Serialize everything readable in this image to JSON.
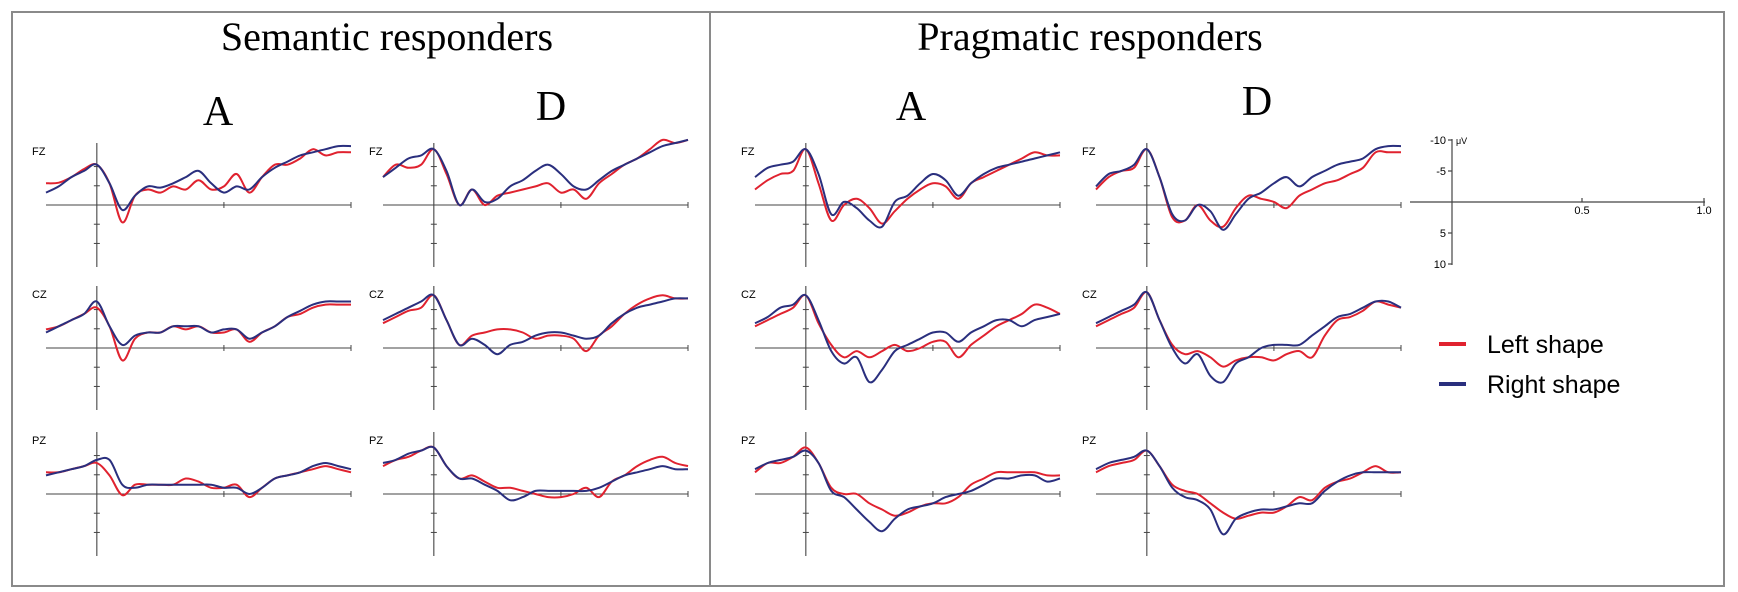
{
  "groups": [
    {
      "id": "semantic",
      "title": "Semantic responders",
      "conditions": [
        "A",
        "D"
      ]
    },
    {
      "id": "pragmatic",
      "title": "Pragmatic responders",
      "conditions": [
        "A",
        "D"
      ]
    }
  ],
  "electrodes": [
    "FZ",
    "CZ",
    "PZ"
  ],
  "scale": {
    "y_ticks": [
      "-10",
      "-5",
      "5",
      "10"
    ],
    "y_unit": "μV",
    "x_ticks": [
      "0.5",
      "1.0"
    ]
  },
  "legend": [
    {
      "label": "Left shape",
      "color": "#e0222f"
    },
    {
      "label": "Right shape",
      "color": "#2a2f7e"
    }
  ],
  "colors": {
    "left": "#e0222f",
    "right": "#2a2f7e",
    "axis": "#444444",
    "border": "#8a8a8a"
  },
  "chart_data": {
    "type": "line",
    "description_axes": "ERP waveforms; negative up",
    "xlabel": "",
    "ylabel": "",
    "xlim": [
      -0.2,
      1.0
    ],
    "ylim": [
      -10,
      10
    ],
    "y_inverted": true,
    "x": [
      -0.2,
      -0.15,
      -0.1,
      -0.05,
      0.0,
      0.05,
      0.1,
      0.15,
      0.2,
      0.25,
      0.3,
      0.35,
      0.4,
      0.45,
      0.5,
      0.55,
      0.6,
      0.65,
      0.7,
      0.75,
      0.8,
      0.85,
      0.9,
      0.95,
      1.0
    ],
    "panels": [
      {
        "group": "Semantic responders",
        "condition": "A",
        "electrode": "FZ",
        "series": [
          {
            "name": "Left shape",
            "values": [
              -3.5,
              -3.6,
              -4.5,
              -5.8,
              -6.5,
              -3.5,
              2.8,
              -1.5,
              -2.5,
              -2.0,
              -3.0,
              -2.5,
              -4.0,
              -2.5,
              -3.0,
              -5.0,
              -2.0,
              -4.5,
              -6.5,
              -6.5,
              -7.5,
              -9.0,
              -8.0,
              -8.5,
              -8.5
            ]
          },
          {
            "name": "Right shape",
            "values": [
              -2.0,
              -3.0,
              -4.5,
              -5.5,
              -6.5,
              -3.5,
              0.8,
              -1.5,
              -3.0,
              -2.8,
              -3.5,
              -4.5,
              -5.5,
              -3.5,
              -2.0,
              -3.0,
              -2.5,
              -4.5,
              -6.0,
              -7.0,
              -8.0,
              -8.5,
              -9.0,
              -9.5,
              -9.5
            ]
          }
        ]
      },
      {
        "group": "Semantic responders",
        "condition": "A",
        "electrode": "CZ",
        "series": [
          {
            "name": "Left shape",
            "values": [
              -3.0,
              -3.5,
              -4.5,
              -5.5,
              -6.5,
              -3.5,
              2.0,
              -1.5,
              -2.5,
              -2.5,
              -3.5,
              -3.0,
              -3.5,
              -2.5,
              -2.5,
              -3.0,
              -1.0,
              -2.5,
              -3.5,
              -5.0,
              -5.5,
              -6.5,
              -7.0,
              -7.0,
              -7.0
            ]
          },
          {
            "name": "Right shape",
            "values": [
              -2.5,
              -3.5,
              -4.5,
              -5.5,
              -7.5,
              -3.5,
              -0.5,
              -2.0,
              -2.5,
              -2.5,
              -3.5,
              -3.5,
              -3.5,
              -2.5,
              -3.0,
              -3.0,
              -1.5,
              -2.5,
              -3.5,
              -5.0,
              -6.0,
              -7.0,
              -7.5,
              -7.5,
              -7.5
            ]
          }
        ]
      },
      {
        "group": "Semantic responders",
        "condition": "A",
        "electrode": "PZ",
        "series": [
          {
            "name": "Left shape",
            "values": [
              -3.5,
              -3.5,
              -4.0,
              -4.5,
              -5.0,
              -3.0,
              0.2,
              -1.5,
              -1.5,
              -1.5,
              -1.5,
              -2.5,
              -2.0,
              -1.0,
              -1.0,
              -1.5,
              0.5,
              -1.0,
              -2.5,
              -3.0,
              -3.5,
              -4.0,
              -4.5,
              -4.0,
              -3.5
            ]
          },
          {
            "name": "Right shape",
            "values": [
              -3.0,
              -3.5,
              -4.0,
              -4.5,
              -5.5,
              -5.5,
              -1.5,
              -1.0,
              -1.5,
              -1.5,
              -1.5,
              -1.5,
              -1.5,
              -1.5,
              -1.0,
              -1.0,
              0.0,
              -1.0,
              -2.5,
              -3.0,
              -3.5,
              -4.5,
              -5.0,
              -4.5,
              -4.0
            ]
          }
        ]
      },
      {
        "group": "Semantic responders",
        "condition": "D",
        "electrode": "FZ",
        "series": [
          {
            "name": "Left shape",
            "values": [
              -4.5,
              -6.5,
              -6.0,
              -6.5,
              -9.0,
              -5.0,
              0.0,
              -2.5,
              0.0,
              -1.5,
              -2.0,
              -2.5,
              -3.0,
              -3.5,
              -2.0,
              -2.5,
              -1.0,
              -3.5,
              -5.0,
              -6.5,
              -7.5,
              -9.0,
              -10.5,
              -10.0,
              -10.5
            ]
          },
          {
            "name": "Right shape",
            "values": [
              -4.5,
              -6.0,
              -7.5,
              -8.0,
              -9.0,
              -5.5,
              0.0,
              -2.5,
              -0.5,
              -1.0,
              -3.0,
              -4.0,
              -5.5,
              -6.5,
              -5.0,
              -3.0,
              -2.5,
              -4.0,
              -5.5,
              -6.5,
              -7.5,
              -8.5,
              -9.5,
              -10.0,
              -10.5
            ]
          }
        ]
      },
      {
        "group": "Semantic responders",
        "condition": "D",
        "electrode": "CZ",
        "series": [
          {
            "name": "Left shape",
            "values": [
              -4.0,
              -5.0,
              -6.0,
              -6.5,
              -8.5,
              -4.5,
              -0.5,
              -2.0,
              -2.5,
              -3.0,
              -3.0,
              -2.5,
              -1.5,
              -2.0,
              -2.0,
              -1.5,
              0.5,
              -2.0,
              -3.5,
              -5.5,
              -7.0,
              -8.0,
              -8.5,
              -8.0,
              -8.0
            ]
          },
          {
            "name": "Right shape",
            "values": [
              -4.5,
              -5.5,
              -6.5,
              -7.5,
              -8.5,
              -4.5,
              -0.5,
              -1.5,
              -0.5,
              1.0,
              -0.5,
              -1.0,
              -2.0,
              -2.5,
              -2.5,
              -2.0,
              -1.5,
              -2.0,
              -4.0,
              -5.5,
              -6.5,
              -7.0,
              -7.5,
              -8.0,
              -8.0
            ]
          }
        ]
      },
      {
        "group": "Semantic responders",
        "condition": "D",
        "electrode": "PZ",
        "series": [
          {
            "name": "Left shape",
            "values": [
              -4.5,
              -5.5,
              -6.0,
              -7.0,
              -7.5,
              -4.5,
              -2.5,
              -3.0,
              -2.0,
              -1.0,
              -1.0,
              -0.5,
              0.0,
              0.5,
              0.5,
              0.0,
              -1.0,
              0.5,
              -2.0,
              -3.0,
              -4.5,
              -5.5,
              -6.0,
              -5.0,
              -4.5
            ]
          },
          {
            "name": "Right shape",
            "values": [
              -5.0,
              -5.5,
              -6.5,
              -7.0,
              -7.5,
              -4.5,
              -2.5,
              -2.5,
              -1.5,
              -0.5,
              1.0,
              0.5,
              -0.5,
              -0.5,
              -0.5,
              -0.5,
              -0.5,
              -1.0,
              -2.0,
              -3.0,
              -3.5,
              -4.0,
              -4.5,
              -4.0,
              -4.0
            ]
          }
        ]
      },
      {
        "group": "Pragmatic responders",
        "condition": "A",
        "electrode": "FZ",
        "series": [
          {
            "name": "Left shape",
            "values": [
              -2.5,
              -4.0,
              -5.0,
              -5.5,
              -9.0,
              -3.5,
              2.5,
              0.0,
              -1.0,
              0.5,
              3.0,
              1.0,
              -1.0,
              -2.5,
              -3.5,
              -3.0,
              -1.0,
              -3.5,
              -4.5,
              -5.5,
              -6.5,
              -7.5,
              -8.5,
              -8.0,
              -8.0
            ]
          },
          {
            "name": "Right shape",
            "values": [
              -4.5,
              -6.0,
              -6.5,
              -7.0,
              -9.0,
              -5.0,
              1.5,
              -0.5,
              0.5,
              2.5,
              3.5,
              -0.5,
              -1.5,
              -3.5,
              -5.0,
              -4.0,
              -1.5,
              -3.5,
              -5.0,
              -6.0,
              -6.5,
              -7.0,
              -7.5,
              -8.0,
              -8.5
            ]
          }
        ]
      },
      {
        "group": "Pragmatic responders",
        "condition": "A",
        "electrode": "CZ",
        "series": [
          {
            "name": "Left shape",
            "values": [
              -3.5,
              -4.5,
              -5.5,
              -6.5,
              -8.5,
              -4.0,
              -0.5,
              1.5,
              0.5,
              1.5,
              0.5,
              -0.5,
              0.5,
              0.0,
              -1.0,
              -1.0,
              1.5,
              -0.5,
              -2.0,
              -3.5,
              -4.5,
              -5.5,
              -7.0,
              -6.5,
              -5.5
            ]
          },
          {
            "name": "Right shape",
            "values": [
              -4.0,
              -5.0,
              -6.5,
              -7.0,
              -8.5,
              -4.5,
              0.5,
              2.5,
              1.5,
              5.5,
              3.5,
              0.5,
              -0.5,
              -1.5,
              -2.5,
              -2.5,
              -1.0,
              -2.5,
              -3.5,
              -4.5,
              -4.5,
              -3.5,
              -4.5,
              -5.0,
              -5.5
            ]
          }
        ]
      },
      {
        "group": "Pragmatic responders",
        "condition": "A",
        "electrode": "PZ",
        "series": [
          {
            "name": "Left shape",
            "values": [
              -3.5,
              -5.0,
              -5.0,
              -6.0,
              -7.5,
              -5.0,
              -1.0,
              0.0,
              0.0,
              1.5,
              2.5,
              3.5,
              3.0,
              2.0,
              1.5,
              1.5,
              0.5,
              -1.5,
              -2.5,
              -3.5,
              -3.5,
              -3.5,
              -3.5,
              -3.0,
              -3.0
            ]
          },
          {
            "name": "Right shape",
            "values": [
              -4.0,
              -5.0,
              -5.5,
              -6.0,
              -7.0,
              -5.0,
              -0.5,
              0.5,
              2.5,
              4.5,
              6.0,
              4.0,
              2.5,
              2.0,
              1.5,
              0.5,
              0.0,
              -0.5,
              -1.5,
              -2.5,
              -2.5,
              -3.0,
              -3.0,
              -2.0,
              -2.5
            ]
          }
        ]
      },
      {
        "group": "Pragmatic responders",
        "condition": "D",
        "electrode": "FZ",
        "series": [
          {
            "name": "Left shape",
            "values": [
              -2.5,
              -4.5,
              -5.5,
              -6.0,
              -9.0,
              -4.5,
              2.0,
              2.5,
              0.0,
              2.5,
              3.5,
              0.5,
              -1.5,
              -1.0,
              -0.5,
              0.5,
              -1.5,
              -2.5,
              -3.5,
              -4.0,
              -5.0,
              -6.0,
              -8.5,
              -8.5,
              -8.5
            ]
          },
          {
            "name": "Right shape",
            "values": [
              -3.0,
              -5.0,
              -5.5,
              -6.5,
              -9.0,
              -4.5,
              1.5,
              2.5,
              0.0,
              1.0,
              4.0,
              1.5,
              -1.0,
              -2.0,
              -3.5,
              -4.5,
              -3.0,
              -4.5,
              -5.5,
              -6.5,
              -7.0,
              -7.5,
              -9.0,
              -9.5,
              -9.5
            ]
          }
        ]
      },
      {
        "group": "Pragmatic responders",
        "condition": "D",
        "electrode": "CZ",
        "series": [
          {
            "name": "Left shape",
            "values": [
              -3.5,
              -4.5,
              -5.5,
              -6.5,
              -9.0,
              -4.5,
              -0.5,
              1.0,
              0.5,
              1.5,
              3.0,
              2.0,
              1.5,
              1.5,
              2.0,
              1.0,
              0.5,
              1.5,
              -2.0,
              -4.5,
              -5.0,
              -6.0,
              -7.5,
              -7.0,
              -6.5
            ]
          },
          {
            "name": "Right shape",
            "values": [
              -4.0,
              -5.0,
              -6.0,
              -7.0,
              -9.0,
              -4.5,
              0.0,
              2.5,
              1.0,
              4.5,
              5.5,
              2.5,
              1.5,
              0.0,
              -0.5,
              -0.5,
              -0.5,
              -2.0,
              -3.5,
              -5.0,
              -5.5,
              -6.5,
              -7.5,
              -7.5,
              -6.5
            ]
          }
        ]
      },
      {
        "group": "Pragmatic responders",
        "condition": "D",
        "electrode": "PZ",
        "series": [
          {
            "name": "Left shape",
            "values": [
              -3.5,
              -4.5,
              -5.0,
              -5.5,
              -7.0,
              -4.5,
              -1.5,
              -0.5,
              0.0,
              1.5,
              3.0,
              4.0,
              3.5,
              3.0,
              3.0,
              2.0,
              0.5,
              1.0,
              -1.0,
              -2.0,
              -2.5,
              -3.5,
              -4.5,
              -3.5,
              -3.5
            ]
          },
          {
            "name": "Right shape",
            "values": [
              -4.0,
              -5.0,
              -5.5,
              -6.0,
              -7.0,
              -4.5,
              -1.0,
              0.5,
              1.0,
              2.5,
              6.5,
              4.0,
              3.0,
              2.5,
              2.5,
              2.0,
              1.5,
              1.5,
              -0.5,
              -2.0,
              -3.0,
              -3.5,
              -3.5,
              -3.5,
              -3.5
            ]
          }
        ]
      }
    ]
  }
}
